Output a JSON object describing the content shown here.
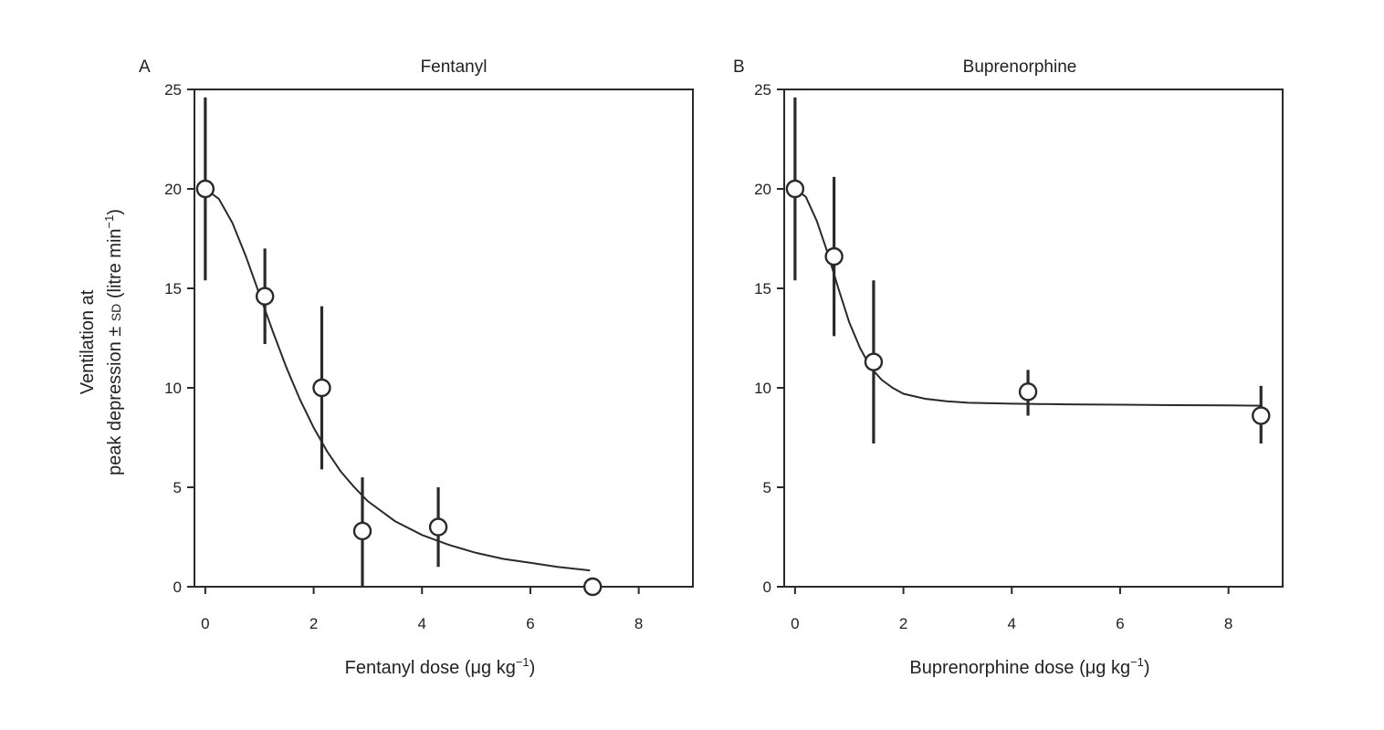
{
  "figure": {
    "ylabel_line1": "Ventilation at",
    "ylabel_line2_pre": "peak depression ± ",
    "ylabel_line2_sd": "SD",
    "ylabel_line2_post": " (litre min",
    "ylabel_line2_exp": "−1",
    "ylabel_line2_close": ")"
  },
  "chart_data": [
    {
      "type": "scatter",
      "panel": "A",
      "title": "Fentanyl",
      "xlabel_pre": "Fentanyl dose (μg kg",
      "xlabel_exp": "−1",
      "xlabel_close": ")",
      "xlim": [
        -0.2,
        9
      ],
      "ylim": [
        0,
        25
      ],
      "xticks": [
        0,
        2,
        4,
        6,
        8
      ],
      "yticks": [
        0,
        5,
        10,
        15,
        20,
        25
      ],
      "points": [
        {
          "x": 0.0,
          "y": 20.0,
          "ylo": 15.4,
          "yhi": 24.6
        },
        {
          "x": 1.1,
          "y": 14.6,
          "ylo": 12.2,
          "yhi": 17.0
        },
        {
          "x": 2.15,
          "y": 10.0,
          "ylo": 5.9,
          "yhi": 14.1
        },
        {
          "x": 2.9,
          "y": 2.8,
          "ylo": 0.0,
          "yhi": 5.5
        },
        {
          "x": 4.3,
          "y": 3.0,
          "ylo": 1.0,
          "yhi": 5.0
        },
        {
          "x": 7.15,
          "y": 0.0,
          "ylo": 0.0,
          "yhi": 0.0
        }
      ],
      "fit": {
        "x": [
          0,
          0.25,
          0.5,
          0.75,
          1.0,
          1.25,
          1.5,
          1.75,
          2.0,
          2.25,
          2.5,
          2.75,
          3.0,
          3.5,
          4.0,
          4.5,
          5.0,
          5.5,
          6.0,
          6.5,
          7.0,
          7.1
        ],
        "y": [
          20.0,
          19.5,
          18.3,
          16.6,
          14.7,
          12.8,
          11.0,
          9.4,
          8.0,
          6.8,
          5.8,
          5.0,
          4.3,
          3.3,
          2.6,
          2.1,
          1.7,
          1.4,
          1.2,
          1.0,
          0.85,
          0.82
        ]
      }
    },
    {
      "type": "scatter",
      "panel": "B",
      "title": "Buprenorphine",
      "xlabel_pre": "Buprenorphine dose (μg kg",
      "xlabel_exp": "−1",
      "xlabel_close": ")",
      "xlim": [
        -0.2,
        9
      ],
      "ylim": [
        0,
        25
      ],
      "xticks": [
        0,
        2,
        4,
        6,
        8
      ],
      "yticks": [
        0,
        5,
        10,
        15,
        20,
        25
      ],
      "points": [
        {
          "x": 0.0,
          "y": 20.0,
          "ylo": 15.4,
          "yhi": 24.6
        },
        {
          "x": 0.72,
          "y": 16.6,
          "ylo": 12.6,
          "yhi": 20.6
        },
        {
          "x": 1.45,
          "y": 11.3,
          "ylo": 7.2,
          "yhi": 15.4
        },
        {
          "x": 4.3,
          "y": 9.8,
          "ylo": 8.6,
          "yhi": 10.9
        },
        {
          "x": 8.6,
          "y": 8.6,
          "ylo": 7.2,
          "yhi": 10.1
        }
      ],
      "fit": {
        "x": [
          0,
          0.2,
          0.4,
          0.6,
          0.8,
          1.0,
          1.2,
          1.4,
          1.6,
          1.8,
          2.0,
          2.4,
          2.8,
          3.2,
          4.0,
          5.0,
          6.0,
          7.0,
          8.0,
          8.6
        ],
        "y": [
          20.0,
          19.6,
          18.4,
          16.8,
          15.0,
          13.3,
          12.0,
          11.0,
          10.4,
          10.0,
          9.7,
          9.45,
          9.32,
          9.25,
          9.2,
          9.17,
          9.15,
          9.13,
          9.12,
          9.1
        ]
      }
    }
  ]
}
